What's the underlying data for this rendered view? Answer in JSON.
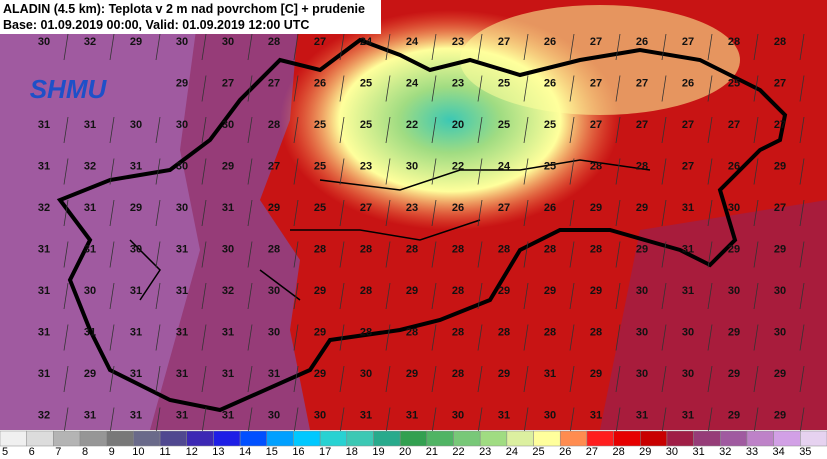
{
  "header": {
    "line1": "ALADIN (4.5 km): Teplota v 2 m nad povrchom [C] + prudenie",
    "line2": "Base: 01.09.2019 00:00, Valid: 01.09.2019 12:00 UTC"
  },
  "logo": "SHMU",
  "grid": {
    "rows": [
      [
        30,
        32,
        29,
        30,
        30,
        28,
        27,
        24,
        24,
        23,
        27,
        26,
        27,
        26,
        27,
        28,
        28
      ],
      [
        null,
        null,
        null,
        29,
        27,
        27,
        26,
        25,
        24,
        23,
        25,
        26,
        27,
        27,
        26,
        25,
        27
      ],
      [
        31,
        31,
        30,
        30,
        30,
        28,
        25,
        25,
        22,
        20,
        25,
        25,
        27,
        27,
        27,
        27,
        27
      ],
      [
        31,
        32,
        31,
        30,
        29,
        27,
        25,
        23,
        30,
        22,
        24,
        25,
        28,
        28,
        27,
        26,
        29
      ],
      [
        32,
        31,
        29,
        30,
        31,
        29,
        25,
        27,
        23,
        26,
        27,
        26,
        29,
        29,
        31,
        30,
        27
      ],
      [
        31,
        31,
        30,
        31,
        30,
        28,
        28,
        28,
        28,
        28,
        28,
        28,
        28,
        29,
        31,
        29,
        29
      ],
      [
        31,
        30,
        31,
        31,
        32,
        30,
        29,
        28,
        29,
        28,
        29,
        29,
        29,
        30,
        31,
        30,
        30
      ],
      [
        31,
        31,
        31,
        31,
        31,
        30,
        29,
        28,
        28,
        28,
        28,
        28,
        28,
        30,
        30,
        29,
        30
      ],
      [
        31,
        29,
        31,
        31,
        31,
        31,
        29,
        30,
        29,
        28,
        29,
        31,
        29,
        30,
        30,
        29,
        29
      ],
      [
        32,
        31,
        31,
        31,
        31,
        30,
        30,
        31,
        31,
        30,
        31,
        30,
        31,
        31,
        31,
        29,
        29
      ]
    ]
  },
  "legend": {
    "labels": [
      5,
      6,
      7,
      8,
      9,
      10,
      11,
      12,
      13,
      14,
      15,
      16,
      17,
      18,
      19,
      20,
      21,
      22,
      23,
      24,
      25,
      26,
      27,
      28,
      29,
      30,
      31,
      32,
      33,
      34,
      35
    ],
    "colors": [
      "#f0f0f0",
      "#dcdcdc",
      "#b4b4b4",
      "#969696",
      "#787878",
      "#6a6a8a",
      "#504890",
      "#3c28b4",
      "#1e1ee6",
      "#0050ff",
      "#00a0ff",
      "#00c8ff",
      "#28d2d2",
      "#3cc8b4",
      "#28aa8c",
      "#32a050",
      "#50b464",
      "#78c878",
      "#a0dc82",
      "#dcf0a0",
      "#ffff9c",
      "#ff8c50",
      "#ff1e1e",
      "#e60000",
      "#c80000",
      "#a01e46",
      "#963c78",
      "#a05aa0",
      "#be82c8",
      "#d2a0e6",
      "#e6d2f0"
    ]
  }
}
